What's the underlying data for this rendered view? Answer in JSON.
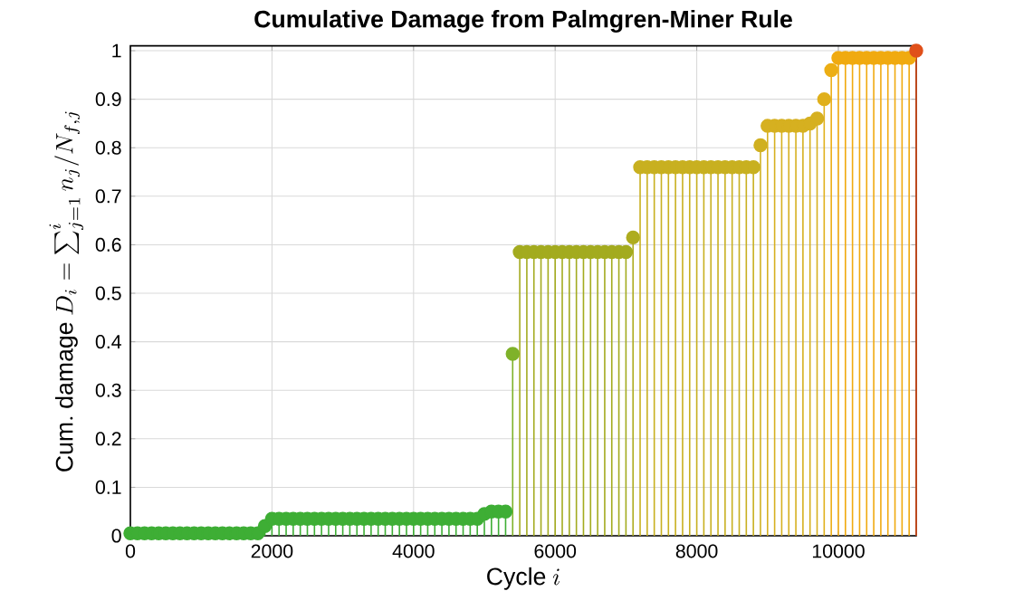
{
  "chart_data": {
    "type": "lollipop",
    "title": "Cumulative Damage from Palmgren-Miner Rule",
    "xlabel": "\\mathrm{Cycle}\\ i",
    "ylabel": "\\mathrm{Cum.\\ damage}\\ D_i = \\sum_{j=1}^{i} n_j/N_{f,j}",
    "x": [
      0,
      100,
      200,
      300,
      400,
      500,
      600,
      700,
      800,
      900,
      1000,
      1100,
      1200,
      1300,
      1400,
      1500,
      1600,
      1700,
      1800,
      1900,
      2000,
      2100,
      2200,
      2300,
      2400,
      2500,
      2600,
      2700,
      2800,
      2900,
      3000,
      3100,
      3200,
      3300,
      3400,
      3500,
      3600,
      3700,
      3800,
      3900,
      4000,
      4100,
      4200,
      4300,
      4400,
      4500,
      4600,
      4700,
      4800,
      4900,
      5000,
      5100,
      5200,
      5300,
      5400,
      5500,
      5600,
      5700,
      5800,
      5900,
      6000,
      6100,
      6200,
      6300,
      6400,
      6500,
      6600,
      6700,
      6800,
      6900,
      7000,
      7100,
      7200,
      7300,
      7400,
      7500,
      7600,
      7700,
      7800,
      7900,
      8000,
      8100,
      8200,
      8300,
      8400,
      8500,
      8600,
      8700,
      8800,
      8900,
      9000,
      9100,
      9200,
      9300,
      9400,
      9500,
      9600,
      9700,
      9800,
      9900,
      10000,
      10100,
      10200,
      10300,
      10400,
      10500,
      10600,
      10700,
      10800,
      10900,
      11000,
      11100
    ],
    "values": [
      0.005,
      0.005,
      0.005,
      0.005,
      0.005,
      0.005,
      0.005,
      0.005,
      0.005,
      0.005,
      0.005,
      0.005,
      0.005,
      0.005,
      0.005,
      0.005,
      0.005,
      0.005,
      0.005,
      0.02,
      0.035,
      0.035,
      0.035,
      0.035,
      0.035,
      0.035,
      0.035,
      0.035,
      0.035,
      0.035,
      0.035,
      0.035,
      0.035,
      0.035,
      0.035,
      0.035,
      0.035,
      0.035,
      0.035,
      0.035,
      0.035,
      0.035,
      0.035,
      0.035,
      0.035,
      0.035,
      0.035,
      0.035,
      0.035,
      0.035,
      0.045,
      0.05,
      0.05,
      0.05,
      0.375,
      0.585,
      0.585,
      0.585,
      0.585,
      0.585,
      0.585,
      0.585,
      0.585,
      0.585,
      0.585,
      0.585,
      0.585,
      0.585,
      0.585,
      0.585,
      0.585,
      0.615,
      0.76,
      0.76,
      0.76,
      0.76,
      0.76,
      0.76,
      0.76,
      0.76,
      0.76,
      0.76,
      0.76,
      0.76,
      0.76,
      0.76,
      0.76,
      0.76,
      0.76,
      0.805,
      0.845,
      0.845,
      0.845,
      0.845,
      0.845,
      0.845,
      0.85,
      0.86,
      0.9,
      0.96,
      0.985,
      0.985,
      0.985,
      0.985,
      0.985,
      0.985,
      0.985,
      0.985,
      0.985,
      0.985,
      0.985,
      1.0
    ],
    "colors": [
      "#3eae35",
      "#3eae35",
      "#3eae35",
      "#3eae35",
      "#3eae35",
      "#3eae35",
      "#3eae35",
      "#3eae35",
      "#3eae35",
      "#3eae35",
      "#3eae35",
      "#3eae35",
      "#3eae35",
      "#3eae35",
      "#3eae35",
      "#3eae35",
      "#3eae35",
      "#3eae35",
      "#3eae35",
      "#3eae35",
      "#3eae35",
      "#3eae35",
      "#3eae35",
      "#3eae35",
      "#3eae35",
      "#3eae35",
      "#3eae35",
      "#3eae35",
      "#3eae35",
      "#3eae35",
      "#3eae35",
      "#3eae35",
      "#3eae35",
      "#3eae35",
      "#3eae35",
      "#3eae35",
      "#3eae35",
      "#3eae35",
      "#3eae35",
      "#3eae35",
      "#3eae35",
      "#3eae35",
      "#3eae35",
      "#3eae35",
      "#3eae35",
      "#3eae35",
      "#3eae35",
      "#3eae35",
      "#3eae35",
      "#3eae35",
      "#3eae35",
      "#3eae35",
      "#3eae35",
      "#3eae35",
      "#7fb22a",
      "#a3ab1f",
      "#a3ab1f",
      "#a3ab1f",
      "#a3ab1f",
      "#a3ab1f",
      "#a3ab1f",
      "#a3ab1f",
      "#a3ab1f",
      "#a3ab1f",
      "#a3ab1f",
      "#a3ab1f",
      "#a3ab1f",
      "#a3ab1f",
      "#a3ab1f",
      "#a3ab1f",
      "#a3ab1f",
      "#aeac1f",
      "#c8b020",
      "#c8b020",
      "#c8b020",
      "#c8b020",
      "#c8b020",
      "#c8b020",
      "#c8b020",
      "#c8b020",
      "#c8b020",
      "#c8b020",
      "#c8b020",
      "#c8b020",
      "#c8b020",
      "#c8b020",
      "#c8b020",
      "#c8b020",
      "#c8b020",
      "#d0b020",
      "#d6b020",
      "#d6b020",
      "#d6b020",
      "#d6b020",
      "#d6b020",
      "#d6b020",
      "#d6b020",
      "#d6b020",
      "#e0b01c",
      "#ecae14",
      "#f0aa10",
      "#f0aa10",
      "#f0aa10",
      "#f0aa10",
      "#f0aa10",
      "#f0aa10",
      "#f0aa10",
      "#f0aa10",
      "#f0aa10",
      "#f0aa10",
      "#f0aa10",
      "#e0501a"
    ],
    "xlim": [
      0,
      11100
    ],
    "ylim": [
      0,
      1.01
    ],
    "xticks": [
      0,
      2000,
      4000,
      6000,
      8000,
      10000
    ],
    "yticks": [
      0,
      0.1,
      0.2,
      0.3,
      0.4,
      0.5,
      0.6,
      0.7,
      0.8,
      0.9,
      1
    ],
    "grid": true,
    "marker": "circle"
  }
}
